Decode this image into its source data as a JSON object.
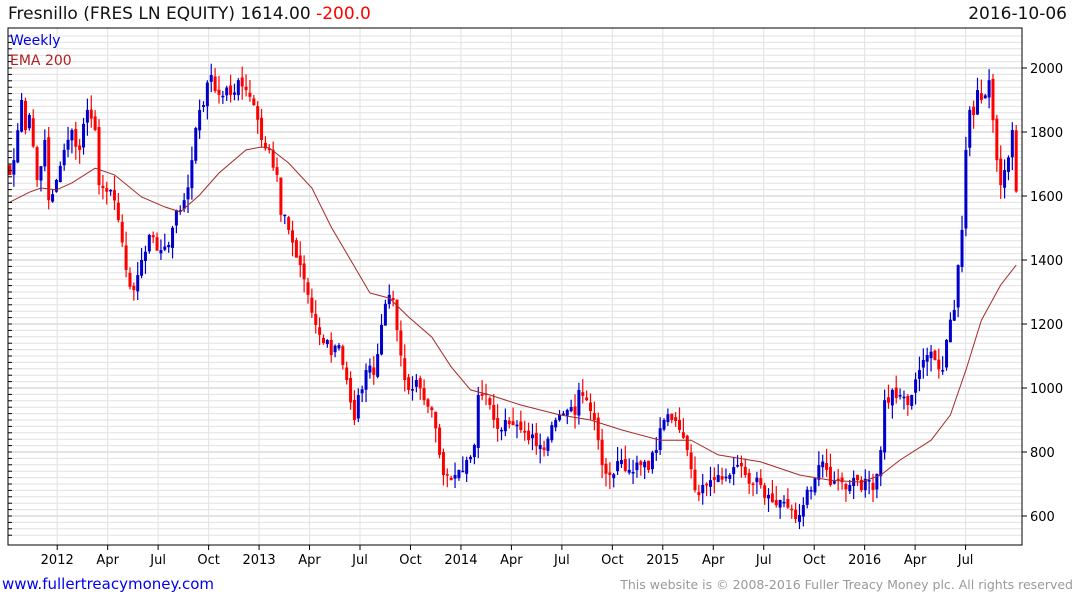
{
  "header": {
    "title": "Fresnillo (FRES LN EQUITY) 1614.00",
    "change": "-200.0",
    "date": "2016-10-06"
  },
  "footer": {
    "site": "www.fullertreacymoney.com",
    "copyright": "This website is © 2008-2016 Fuller Treacy Money plc. All rights reserved"
  },
  "colors": {
    "up": "#0000cc",
    "down": "#ff0000",
    "ema": "#a52a2a",
    "grid": "#e2e2e2",
    "grid_major": "#c8c8c8"
  },
  "chart_data": {
    "type": "candlestick",
    "title": "Fresnillo (FRES LN EQUITY) 1614.00 -200.0",
    "legend": [
      "Weekly",
      "EMA 200"
    ],
    "legend_placement": "top-left",
    "ylim": [
      520,
      2100
    ],
    "y_ticks": [
      600,
      800,
      1000,
      1200,
      1400,
      1600,
      1800,
      2000
    ],
    "x_ticks": [
      "2012",
      "Apr",
      "Jul",
      "Oct",
      "2013",
      "Apr",
      "Jul",
      "Oct",
      "2014",
      "Apr",
      "Jul",
      "Oct",
      "2015",
      "Apr",
      "Jul",
      "Oct",
      "2016",
      "Apr",
      "Jul"
    ],
    "x_tick_first_week": 12.2,
    "x_tick_step_weeks": 13.04,
    "weeks": 261,
    "close_anchors": [
      [
        0,
        1666
      ],
      [
        1,
        1712
      ],
      [
        3,
        1900
      ],
      [
        4,
        1806
      ],
      [
        5,
        1853
      ],
      [
        7,
        1650
      ],
      [
        9,
        1775
      ],
      [
        10,
        1587
      ],
      [
        12,
        1650
      ],
      [
        14,
        1744
      ],
      [
        16,
        1806
      ],
      [
        18,
        1744
      ],
      [
        20,
        1869
      ],
      [
        22,
        1806
      ],
      [
        23,
        1634
      ],
      [
        26,
        1619
      ],
      [
        28,
        1525
      ],
      [
        30,
        1369
      ],
      [
        32,
        1306
      ],
      [
        34,
        1400
      ],
      [
        36,
        1478
      ],
      [
        39,
        1431
      ],
      [
        41,
        1447
      ],
      [
        43,
        1556
      ],
      [
        45,
        1587
      ],
      [
        47,
        1712
      ],
      [
        49,
        1869
      ],
      [
        50,
        1884
      ],
      [
        52,
        1978
      ],
      [
        54,
        1916
      ],
      [
        57,
        1916
      ],
      [
        59,
        1962
      ],
      [
        61,
        1931
      ],
      [
        63,
        1884
      ],
      [
        65,
        1775
      ],
      [
        67,
        1744
      ],
      [
        69,
        1666
      ],
      [
        70,
        1541
      ],
      [
        72,
        1494
      ],
      [
        75,
        1384
      ],
      [
        77,
        1291
      ],
      [
        79,
        1197
      ],
      [
        80,
        1166
      ],
      [
        82,
        1150
      ],
      [
        83,
        1103
      ],
      [
        85,
        1134
      ],
      [
        87,
        1025
      ],
      [
        89,
        900
      ],
      [
        90,
        978
      ],
      [
        92,
        1056
      ],
      [
        94,
        1041
      ],
      [
        96,
        1197
      ],
      [
        98,
        1291
      ],
      [
        99,
        1275
      ],
      [
        100,
        1181
      ],
      [
        102,
        1025
      ],
      [
        103,
        994
      ],
      [
        105,
        1025
      ],
      [
        107,
        962
      ],
      [
        109,
        931
      ],
      [
        111,
        791
      ],
      [
        112,
        728
      ],
      [
        114,
        712
      ],
      [
        115,
        728
      ],
      [
        116,
        744
      ],
      [
        118,
        775
      ],
      [
        120,
        822
      ],
      [
        121,
        978
      ],
      [
        123,
        978
      ],
      [
        124,
        947
      ],
      [
        127,
        869
      ],
      [
        128,
        900
      ],
      [
        130,
        884
      ],
      [
        132,
        869
      ],
      [
        134,
        837
      ],
      [
        137,
        822
      ],
      [
        138,
        806
      ],
      [
        140,
        884
      ],
      [
        142,
        916
      ],
      [
        144,
        931
      ],
      [
        146,
        916
      ],
      [
        147,
        994
      ],
      [
        149,
        962
      ],
      [
        151,
        900
      ],
      [
        152,
        837
      ],
      [
        153,
        759
      ],
      [
        155,
        728
      ],
      [
        158,
        775
      ],
      [
        160,
        744
      ],
      [
        163,
        759
      ],
      [
        165,
        744
      ],
      [
        167,
        806
      ],
      [
        169,
        900
      ],
      [
        171,
        900
      ],
      [
        173,
        869
      ],
      [
        175,
        806
      ],
      [
        177,
        681
      ],
      [
        179,
        697
      ],
      [
        181,
        712
      ],
      [
        183,
        728
      ],
      [
        186,
        728
      ],
      [
        188,
        759
      ],
      [
        190,
        728
      ],
      [
        192,
        697
      ],
      [
        194,
        697
      ],
      [
        196,
        666
      ],
      [
        198,
        634
      ],
      [
        199,
        650
      ],
      [
        202,
        619
      ],
      [
        204,
        603
      ],
      [
        205,
        634
      ],
      [
        207,
        681
      ],
      [
        209,
        759
      ],
      [
        211,
        744
      ],
      [
        212,
        697
      ],
      [
        214,
        712
      ],
      [
        217,
        697
      ],
      [
        219,
        712
      ],
      [
        220,
        681
      ],
      [
        222,
        712
      ],
      [
        223,
        681
      ],
      [
        225,
        806
      ],
      [
        226,
        962
      ],
      [
        228,
        994
      ],
      [
        230,
        978
      ],
      [
        232,
        947
      ],
      [
        233,
        978
      ],
      [
        235,
        1056
      ],
      [
        237,
        1103
      ],
      [
        239,
        1087
      ],
      [
        241,
        1056
      ],
      [
        242,
        1150
      ],
      [
        244,
        1244
      ],
      [
        245,
        1384
      ],
      [
        246,
        1494
      ],
      [
        247,
        1744
      ],
      [
        248,
        1869
      ],
      [
        249,
        1853
      ],
      [
        250,
        1931
      ],
      [
        251,
        1900
      ],
      [
        253,
        1962
      ],
      [
        254,
        1837
      ],
      [
        255,
        1712
      ],
      [
        256,
        1634
      ],
      [
        257,
        1681
      ],
      [
        259,
        1806
      ],
      [
        260,
        1614
      ]
    ],
    "ema200_anchors": [
      [
        0,
        1581
      ],
      [
        5,
        1612
      ],
      [
        8,
        1625
      ],
      [
        12,
        1619
      ],
      [
        16,
        1641
      ],
      [
        22,
        1687
      ],
      [
        27,
        1666
      ],
      [
        34,
        1597
      ],
      [
        40,
        1566
      ],
      [
        44,
        1550
      ],
      [
        49,
        1603
      ],
      [
        54,
        1672
      ],
      [
        61,
        1744
      ],
      [
        65,
        1753
      ],
      [
        67,
        1750
      ],
      [
        72,
        1703
      ],
      [
        78,
        1625
      ],
      [
        83,
        1503
      ],
      [
        88,
        1400
      ],
      [
        93,
        1297
      ],
      [
        98,
        1281
      ],
      [
        103,
        1222
      ],
      [
        109,
        1159
      ],
      [
        114,
        1066
      ],
      [
        119,
        994
      ],
      [
        124,
        978
      ],
      [
        132,
        947
      ],
      [
        142,
        916
      ],
      [
        150,
        900
      ],
      [
        158,
        869
      ],
      [
        168,
        837
      ],
      [
        176,
        837
      ],
      [
        183,
        791
      ],
      [
        194,
        769
      ],
      [
        204,
        728
      ],
      [
        212,
        712
      ],
      [
        220,
        706
      ],
      [
        225,
        728
      ],
      [
        230,
        775
      ],
      [
        238,
        837
      ],
      [
        243,
        916
      ],
      [
        247,
        1056
      ],
      [
        251,
        1212
      ],
      [
        256,
        1322
      ],
      [
        260,
        1384
      ]
    ]
  }
}
